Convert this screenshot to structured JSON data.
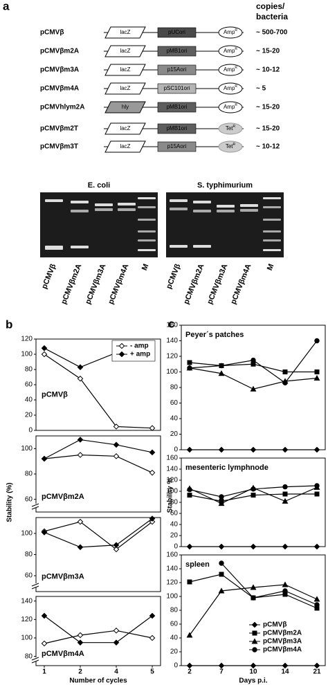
{
  "panel_a": {
    "label": "a",
    "copies_header": [
      "copies/",
      "bacteria"
    ],
    "constructs": [
      {
        "name": "pCMVβ",
        "marker": "lacZ",
        "ori": "pUCori",
        "resistance": "Amp",
        "resistance_sup": "R",
        "copies": "~ 500-700"
      },
      {
        "name": "pCMVβm2A",
        "marker": "lacZ",
        "ori": "pMB1ori",
        "resistance": "Amp",
        "resistance_sup": "R",
        "copies": "~ 15-20"
      },
      {
        "name": "pCMVβm3A",
        "marker": "lacZ",
        "ori": "p15Aori",
        "resistance": "Amp",
        "resistance_sup": "R",
        "copies": "~ 10-12"
      },
      {
        "name": "pCMVβm4A",
        "marker": "lacZ",
        "ori": "pSC101ori",
        "resistance": "Amp",
        "resistance_sup": "R",
        "copies": "~ 5"
      },
      {
        "name": "pCMVhlym2A",
        "marker": "hly",
        "ori": "pMB1ori",
        "resistance": "Amp",
        "resistance_sup": "R",
        "copies": "~ 15-20"
      },
      {
        "name": "pCMVβm2T",
        "marker": "lacZ",
        "ori": "pMB1ori",
        "resistance": "Tet",
        "resistance_sup": "R",
        "copies": "~ 15-20"
      },
      {
        "name": "pCMVβm3T",
        "marker": "lacZ",
        "ori": "p15Aori",
        "resistance": "Tet",
        "resistance_sup": "R",
        "copies": "~ 10-12"
      }
    ],
    "gels": [
      {
        "title": "E. coli",
        "lanes": [
          "pCMVβ",
          "pCMVβm2A",
          "pCMVβm3A",
          "pCMVβm4A",
          "M"
        ]
      },
      {
        "title": "S. typhimurium",
        "lanes": [
          "pCMVβ",
          "pCMVβm2A",
          "pCMVβm3A",
          "pCMVβm4A",
          "M"
        ]
      }
    ]
  },
  "chart_data": [
    {
      "type": "line",
      "panel_label": "b",
      "xlabel": "Number of cycles",
      "ylabel": "Stability (%)",
      "categories": [
        "1",
        "2",
        "4",
        "5"
      ],
      "legend": {
        "loc": "upper right",
        "panel": 0,
        "entries": [
          {
            "name": "- amp",
            "marker": "diamond-open",
            "color": "#000000"
          },
          {
            "name": "+ amp",
            "marker": "diamond",
            "color": "#000000"
          }
        ]
      },
      "panels": [
        {
          "title": "pCMVβ",
          "ylim": [
            0,
            120
          ],
          "yticks": [
            0,
            20,
            40,
            60,
            80,
            100,
            120
          ],
          "axis_break": false,
          "series": [
            {
              "values": [
                100,
                68,
                5,
                3
              ]
            },
            {
              "values": [
                108,
                83,
                102,
                108
              ]
            }
          ]
        },
        {
          "title": "pCMVβm2A",
          "ylim": [
            50,
            110
          ],
          "yticks": [
            60,
            80,
            100
          ],
          "axis_break": true,
          "series": [
            {
              "values": [
                92,
                95,
                94,
                81
              ]
            },
            {
              "values": [
                92,
                107,
                103,
                97
              ]
            }
          ]
        },
        {
          "title": "pCMVβm3A",
          "ylim": [
            45,
            115
          ],
          "yticks": [
            60,
            80,
            100
          ],
          "axis_break": true,
          "series": [
            {
              "values": [
                102,
                111,
                85,
                111
              ]
            },
            {
              "values": [
                101,
                87,
                89,
                114
              ]
            }
          ]
        },
        {
          "title": "pCMVβm4A",
          "ylim": [
            70,
            145
          ],
          "yticks": [
            80,
            100,
            120,
            140
          ],
          "axis_break": true,
          "series": [
            {
              "values": [
                94,
                103,
                108,
                100
              ]
            },
            {
              "values": [
                124,
                95,
                95,
                124
              ]
            }
          ]
        }
      ]
    },
    {
      "type": "line",
      "panel_label": "c",
      "xlabel": "Days p.i.",
      "ylabel": "Stability %",
      "categories": [
        "2",
        "7",
        "10",
        "14",
        "21"
      ],
      "legend": {
        "loc": "lower right",
        "panel": 2,
        "entries": [
          {
            "name": "pCMVβ",
            "marker": "diamond",
            "color": "#000000"
          },
          {
            "name": "pCMVβm2A",
            "marker": "square",
            "color": "#000000"
          },
          {
            "name": "pCMVβm3A",
            "marker": "triangle",
            "color": "#000000"
          },
          {
            "name": "pCMVβm4A",
            "marker": "circle",
            "color": "#000000"
          }
        ]
      },
      "panels": [
        {
          "title": "Peyer´s patches",
          "ylim": [
            0,
            160
          ],
          "yticks": [
            0,
            20,
            40,
            60,
            80,
            100,
            120,
            140,
            160
          ],
          "axis_break": false,
          "series": [
            {
              "values": [
                0,
                0,
                0,
                0,
                0
              ]
            },
            {
              "values": [
                112,
                108,
                110,
                100,
                100
              ]
            },
            {
              "values": [
                105,
                98,
                78,
                88,
                92
              ]
            },
            {
              "values": [
                105,
                108,
                115,
                86,
                140
              ]
            }
          ]
        },
        {
          "title": "mesenteric lymphnode",
          "ylim": [
            0,
            160
          ],
          "yticks": [
            0,
            20,
            40,
            60,
            80,
            100,
            120,
            140,
            160
          ],
          "axis_break": false,
          "series": [
            {
              "values": [
                0,
                0,
                0,
                0,
                0
              ]
            },
            {
              "values": [
                93,
                82,
                93,
                95,
                95
              ]
            },
            {
              "values": [
                105,
                78,
                106,
                82,
                107
              ]
            },
            {
              "values": [
                103,
                90,
                104,
                108,
                110
              ]
            }
          ]
        },
        {
          "title": "spleen",
          "ylim": [
            0,
            160
          ],
          "yticks": [
            0,
            20,
            40,
            60,
            80,
            100,
            120,
            140,
            160
          ],
          "axis_break": false,
          "series": [
            {
              "values": [
                0,
                0,
                0,
                0,
                0
              ]
            },
            {
              "values": [
                121,
                132,
                98,
                103,
                83
              ]
            },
            {
              "values": [
                44,
                108,
                113,
                117,
                96
              ]
            },
            {
              "values": [
                null,
                148,
                98,
                108,
                88
              ]
            }
          ]
        }
      ]
    }
  ]
}
